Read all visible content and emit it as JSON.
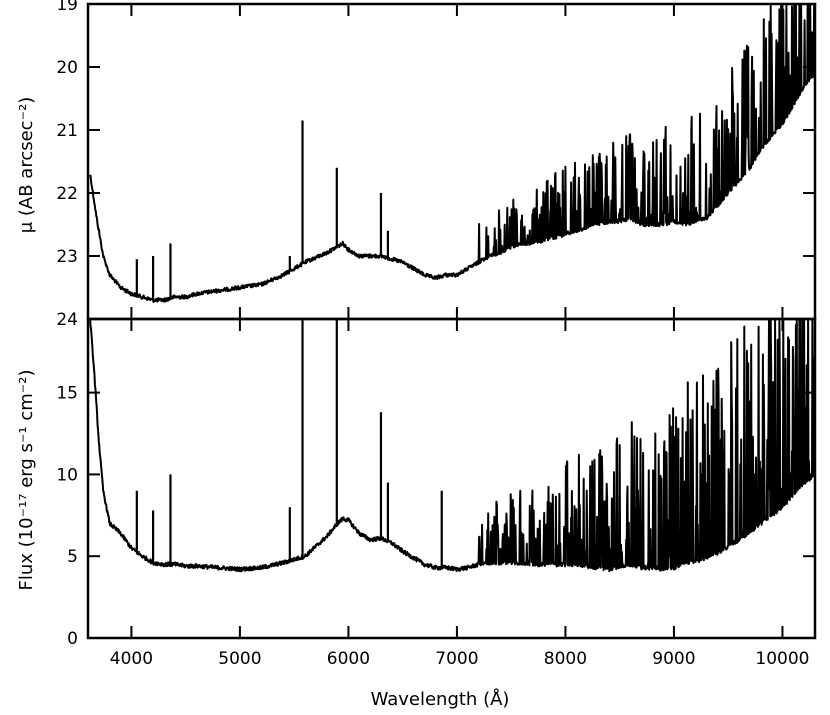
{
  "chart_data": [
    {
      "type": "line",
      "panel": "top",
      "ylabel": "μ (AB arcsec⁻²)",
      "ylim": [
        24,
        19
      ],
      "y_inverted": true,
      "yticks": [
        "19",
        "20",
        "21",
        "22",
        "23",
        "24"
      ],
      "xlim": [
        3600,
        10300
      ],
      "series": [
        {
          "x": [
            3620,
            3680,
            3740,
            3800,
            3900,
            4000,
            4100,
            4200,
            4300,
            4400,
            4500,
            4600,
            4800,
            5000,
            5200,
            5400,
            5600,
            5800,
            5900,
            5950,
            6000,
            6100,
            6200,
            6300,
            6400,
            6500,
            6600,
            6700,
            6800,
            6900,
            7000,
            7100,
            7200,
            7300,
            7400,
            7500,
            7600,
            7700,
            7800,
            7900,
            8000,
            8100,
            8200,
            8300,
            8400,
            8500,
            8600,
            8700,
            8800,
            8900,
            9000,
            9100,
            9200,
            9300,
            9400,
            9500,
            9600,
            9700,
            9800,
            9900,
            10000,
            10100,
            10200,
            10300
          ],
          "y": [
            21.7,
            22.4,
            23.0,
            23.3,
            23.5,
            23.6,
            23.65,
            23.7,
            23.7,
            23.65,
            23.65,
            23.6,
            23.55,
            23.5,
            23.45,
            23.3,
            23.1,
            22.95,
            22.85,
            22.8,
            22.9,
            23.0,
            23.0,
            23.0,
            23.05,
            23.1,
            23.2,
            23.3,
            23.35,
            23.3,
            23.3,
            23.2,
            23.1,
            23.0,
            22.95,
            22.85,
            22.8,
            22.8,
            22.75,
            22.7,
            22.65,
            22.6,
            22.55,
            22.5,
            22.45,
            22.45,
            22.4,
            22.5,
            22.5,
            22.5,
            22.45,
            22.5,
            22.45,
            22.4,
            22.2,
            22.0,
            21.8,
            21.6,
            21.3,
            21.1,
            20.9,
            20.6,
            20.3,
            20.1
          ]
        }
      ],
      "emission_lines": [
        {
          "x": 4050,
          "y": 23.05
        },
        {
          "x": 4200,
          "y": 23.0
        },
        {
          "x": 4360,
          "y": 22.8
        },
        {
          "x": 5460,
          "y": 23.0
        },
        {
          "x": 5577,
          "y": 20.85
        },
        {
          "x": 5893,
          "y": 21.6
        },
        {
          "x": 6300,
          "y": 22.0
        },
        {
          "x": 6364,
          "y": 22.6
        }
      ]
    },
    {
      "type": "line",
      "panel": "bottom",
      "xlabel": "Wavelength (Å)",
      "ylabel": "Flux (10⁻¹⁷ erg s⁻¹ cm⁻²)",
      "ylim": [
        0,
        19.5
      ],
      "yticks": [
        "0",
        "5",
        "10",
        "15"
      ],
      "xlim": [
        3600,
        10300
      ],
      "xticks": [
        "4000",
        "5000",
        "6000",
        "7000",
        "8000",
        "9000",
        "10000"
      ],
      "series": [
        {
          "x": [
            3620,
            3660,
            3700,
            3740,
            3800,
            3900,
            4000,
            4100,
            4200,
            4300,
            4400,
            4500,
            4600,
            4800,
            5000,
            5200,
            5400,
            5600,
            5800,
            5900,
            5950,
            6000,
            6100,
            6200,
            6300,
            6400,
            6500,
            6600,
            6700,
            6800,
            6900,
            7000,
            7100,
            7200,
            7300,
            7400,
            7500,
            7600,
            7700,
            7800,
            7900,
            8000,
            8100,
            8200,
            8300,
            8400,
            8500,
            8600,
            8700,
            8800,
            8900,
            9000,
            9100,
            9200,
            9300,
            9400,
            9500,
            9600,
            9700,
            9800,
            9900,
            10000,
            10100,
            10200,
            10300
          ],
          "y": [
            19.5,
            16.0,
            12.0,
            9.0,
            7.0,
            6.4,
            5.5,
            5.0,
            4.6,
            4.5,
            4.5,
            4.4,
            4.4,
            4.3,
            4.2,
            4.3,
            4.6,
            5.0,
            6.2,
            7.0,
            7.3,
            7.2,
            6.4,
            6.0,
            6.1,
            5.8,
            5.3,
            4.9,
            4.5,
            4.3,
            4.3,
            4.2,
            4.3,
            4.5,
            4.6,
            4.6,
            4.6,
            4.6,
            4.5,
            4.5,
            4.5,
            4.5,
            4.5,
            4.4,
            4.3,
            4.2,
            4.4,
            4.5,
            4.3,
            4.3,
            4.2,
            4.3,
            4.6,
            4.7,
            4.9,
            5.2,
            5.6,
            6.0,
            6.5,
            7.0,
            7.5,
            8.0,
            8.8,
            9.5,
            10.0
          ]
        }
      ],
      "emission_lines": [
        {
          "x": 4050,
          "y": 9.0
        },
        {
          "x": 4200,
          "y": 7.8
        },
        {
          "x": 4360,
          "y": 10.0
        },
        {
          "x": 5460,
          "y": 8.0
        },
        {
          "x": 5577,
          "y": 19.5
        },
        {
          "x": 5893,
          "y": 19.5
        },
        {
          "x": 6300,
          "y": 13.8
        },
        {
          "x": 6364,
          "y": 9.5
        },
        {
          "x": 6860,
          "y": 9.0
        }
      ]
    }
  ]
}
